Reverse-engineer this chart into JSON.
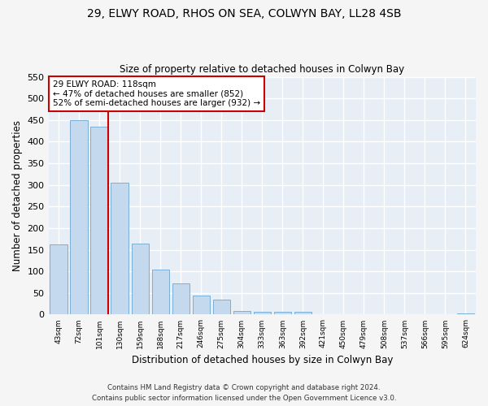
{
  "title_line1": "29, ELWY ROAD, RHOS ON SEA, COLWYN BAY, LL28 4SB",
  "title_line2": "Size of property relative to detached houses in Colwyn Bay",
  "xlabel": "Distribution of detached houses by size in Colwyn Bay",
  "ylabel": "Number of detached properties",
  "bar_color": "#c5d9ee",
  "bar_edge_color": "#7bafd4",
  "background_color": "#e8eef6",
  "grid_color": "#ffffff",
  "fig_background": "#f5f5f5",
  "categories": [
    "43sqm",
    "72sqm",
    "101sqm",
    "130sqm",
    "159sqm",
    "188sqm",
    "217sqm",
    "246sqm",
    "275sqm",
    "304sqm",
    "333sqm",
    "363sqm",
    "392sqm",
    "421sqm",
    "450sqm",
    "479sqm",
    "508sqm",
    "537sqm",
    "566sqm",
    "595sqm",
    "624sqm"
  ],
  "values": [
    163,
    450,
    435,
    305,
    165,
    105,
    73,
    44,
    35,
    9,
    7,
    6,
    7,
    0,
    0,
    0,
    0,
    0,
    0,
    0,
    3
  ],
  "ylim": [
    0,
    550
  ],
  "yticks": [
    0,
    50,
    100,
    150,
    200,
    250,
    300,
    350,
    400,
    450,
    500,
    550
  ],
  "vline_x_index": 2,
  "vline_color": "#cc0000",
  "annotation_text": "29 ELWY ROAD: 118sqm\n← 47% of detached houses are smaller (852)\n52% of semi-detached houses are larger (932) →",
  "annotation_box_color": "#ffffff",
  "annotation_box_edge": "#cc0000",
  "footer_line1": "Contains HM Land Registry data © Crown copyright and database right 2024.",
  "footer_line2": "Contains public sector information licensed under the Open Government Licence v3.0."
}
